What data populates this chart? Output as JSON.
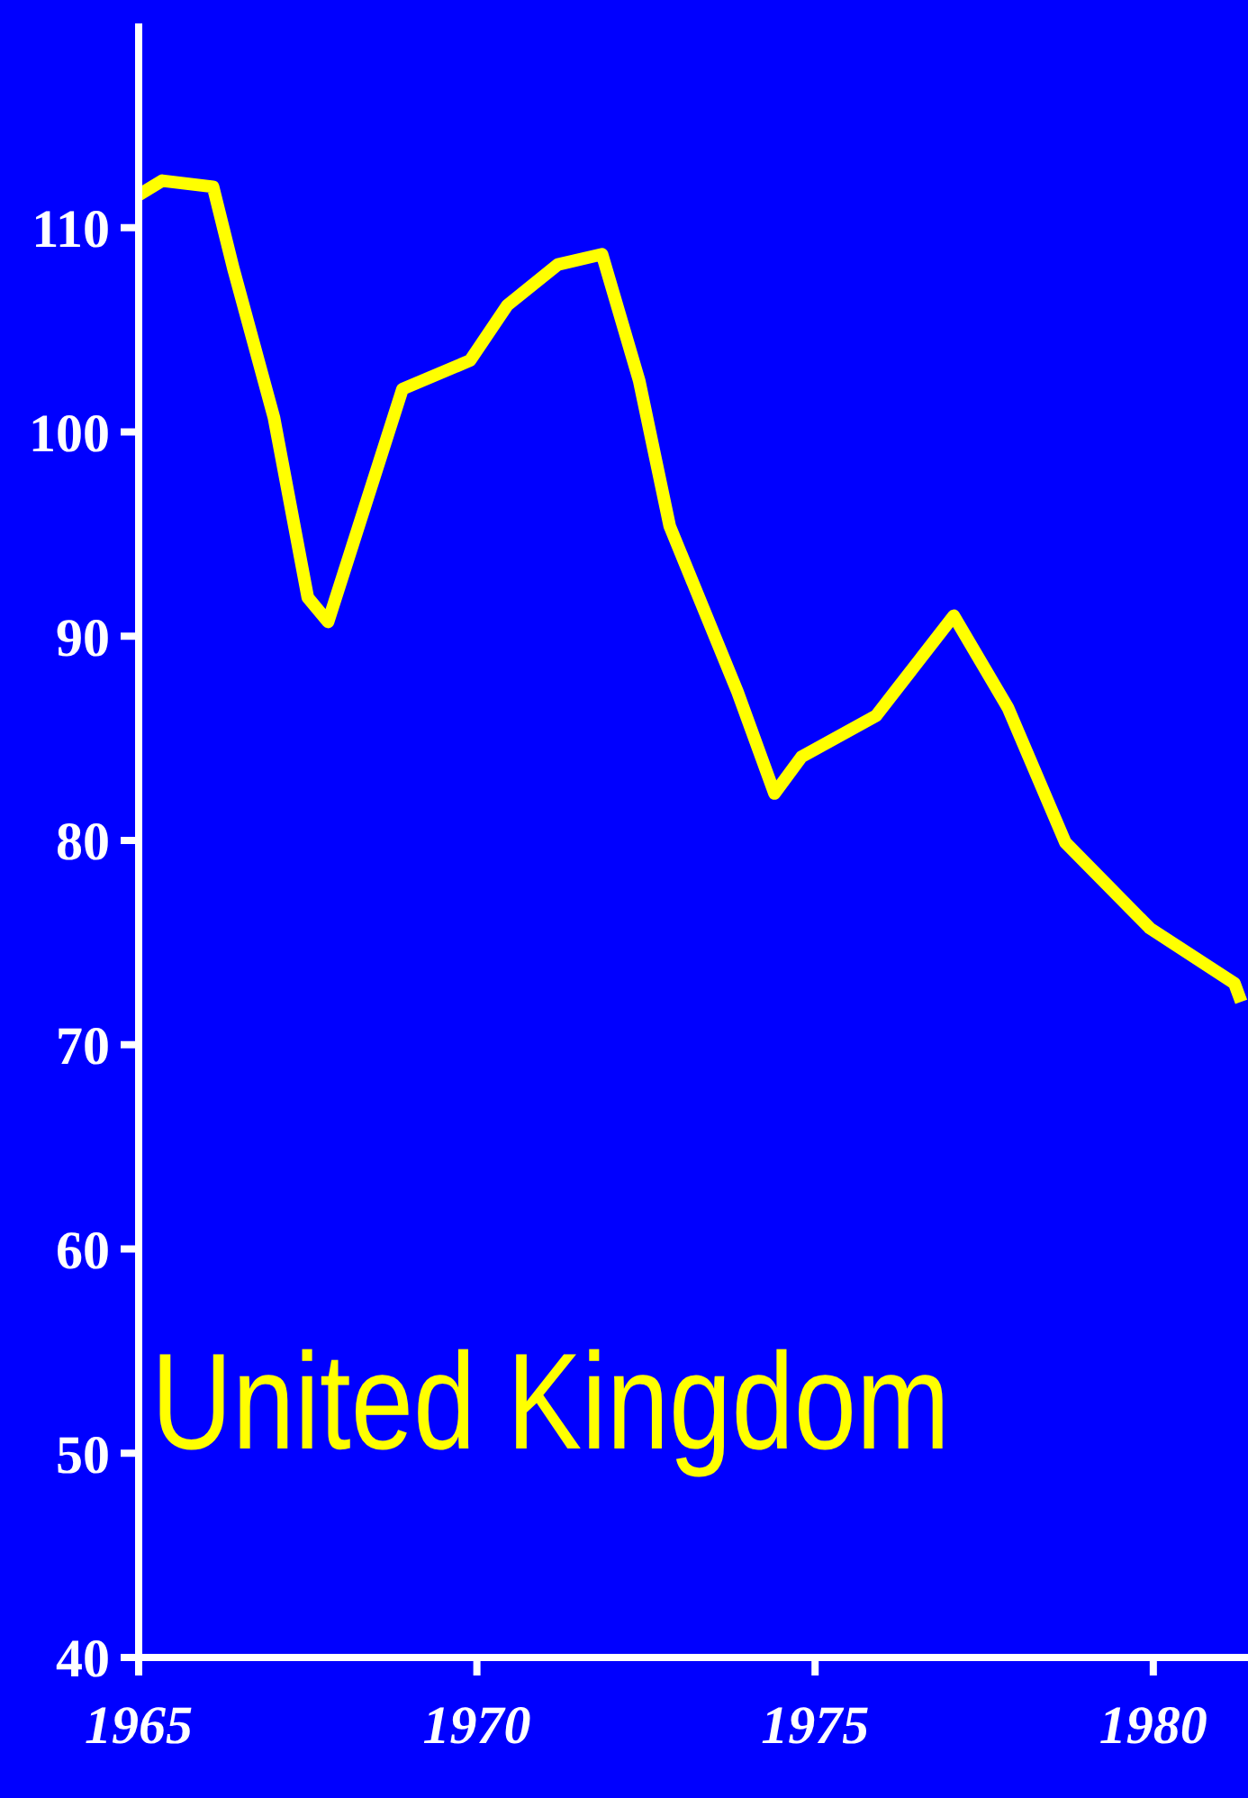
{
  "chart_data": {
    "type": "line",
    "x": [
      1965,
      1965.35,
      1966.1,
      1966.4,
      1967.0,
      1967.5,
      1967.8,
      1968.9,
      1969.9,
      1970.45,
      1971.2,
      1971.85,
      1972.4,
      1972.85,
      1973.85,
      1974.4,
      1974.8,
      1975.9,
      1977.05,
      1977.85,
      1978.7,
      1979.95,
      1981.2,
      1981.3
    ],
    "series": [
      {
        "name": "United Kingdom",
        "color": "#ffff00",
        "values": [
          111.6,
          112.3,
          112.0,
          108,
          100.7,
          91.9,
          90.7,
          102.1,
          103.5,
          106.2,
          108.2,
          108.7,
          102.5,
          95.4,
          87.3,
          82.3,
          84.1,
          86.1,
          91.0,
          86.5,
          79.9,
          75.7,
          73.0,
          72.1
        ]
      }
    ],
    "xlim": [
      1965,
      1981.4
    ],
    "xticks": [
      1965,
      1970,
      1975,
      1980
    ],
    "ylim": [
      40,
      120
    ],
    "yticks": [
      40,
      50,
      60,
      70,
      80,
      90,
      100,
      110
    ],
    "marker": "none",
    "line_style": "solid"
  }
}
